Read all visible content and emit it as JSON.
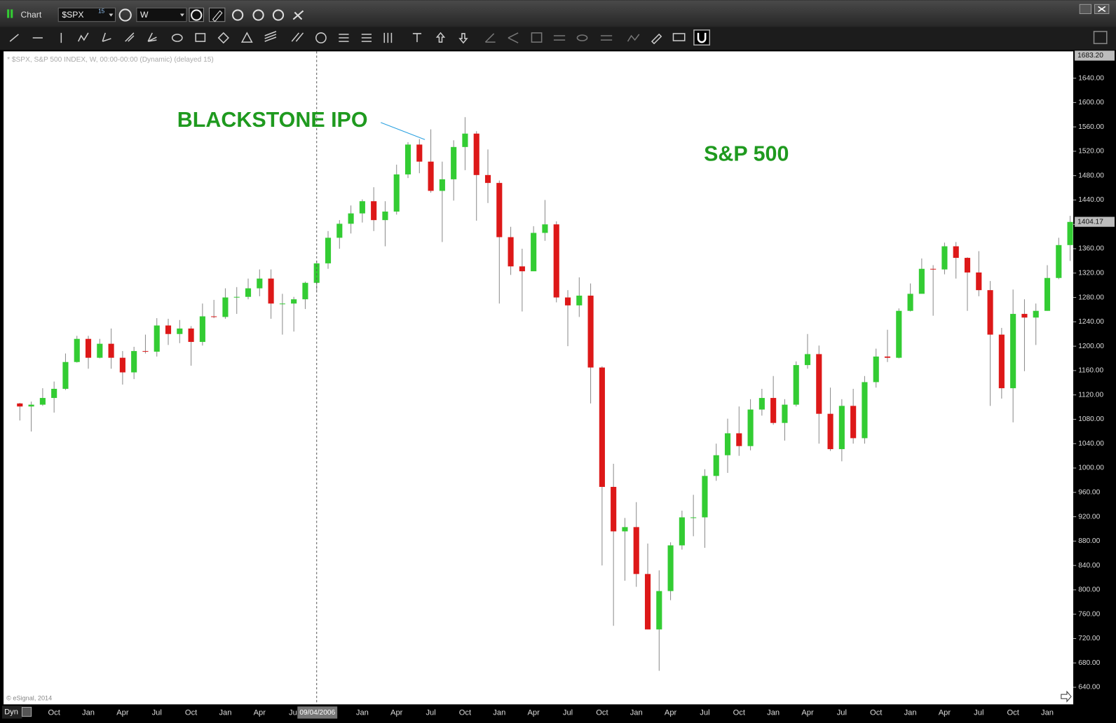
{
  "window": {
    "title": "Chart",
    "symbol": "$SPX",
    "symbol_badge": "15",
    "interval": "W",
    "mode": "Dyn"
  },
  "chart_data": {
    "type": "candlestick",
    "header": "* $SPX, S&P 500 INDEX, W, 00:00-00:00 (Dynamic) (delayed 15)",
    "copyright": "© eSignal, 2014",
    "cursor_label": "09/04/2006",
    "annotations": [
      {
        "text": "BLACKSTONE IPO",
        "color": "#1f9a1f"
      },
      {
        "text": "S&P 500",
        "color": "#1f9a1f"
      }
    ],
    "up_color": "#33cc33",
    "down_color": "#dd1818",
    "wick_color": "#8a8a8a",
    "categories": [
      null,
      null,
      null,
      "Oct",
      null,
      null,
      "Jan",
      null,
      null,
      "Apr",
      null,
      null,
      "Jul",
      null,
      null,
      "Oct",
      null,
      null,
      "Jan",
      null,
      null,
      "Apr",
      null,
      null,
      "Jul",
      null,
      null,
      null,
      null,
      null,
      "Jan",
      null,
      null,
      "Apr",
      null,
      null,
      "Jul",
      null,
      null,
      "Oct",
      null,
      null,
      "Jan",
      null,
      null,
      "Apr",
      null,
      null,
      "Jul",
      null,
      null,
      "Oct",
      null,
      null,
      "Jan",
      null,
      null,
      "Apr",
      null,
      null,
      "Jul",
      null,
      null,
      "Oct",
      null,
      null,
      "Jan",
      null,
      null,
      "Apr",
      null,
      null,
      "Jul",
      null,
      null,
      "Oct",
      null,
      null,
      "Jan",
      null,
      null,
      "Apr",
      null,
      null,
      "Jul",
      null,
      null,
      "Oct",
      null,
      null,
      "Jan",
      null,
      null
    ],
    "open": [
      1106,
      1101,
      1104,
      1115,
      1130,
      1174,
      1212,
      1181,
      1204,
      1181,
      1157,
      1192,
      1191,
      1234,
      1220,
      1229,
      1207,
      1249,
      1248,
      1280,
      1281,
      1295,
      1311,
      1270,
      1270,
      1277,
      1304,
      1336,
      1378,
      1401,
      1418,
      1438,
      1407,
      1421,
      1482,
      1531,
      1503,
      1455,
      1474,
      1527,
      1549,
      1481,
      1468,
      1379,
      1331,
      1323,
      1386,
      1400,
      1280,
      1267,
      1283,
      1165,
      969,
      896,
      903,
      826,
      735,
      798,
      873,
      919,
      919,
      987,
      1021,
      1057,
      1036,
      1096,
      1115,
      1074,
      1104,
      1169,
      1187,
      1089,
      1031,
      1102,
      1049,
      1141,
      1183,
      1181,
      1258,
      1286,
      1327,
      1326,
      1364,
      1345,
      1321,
      1292,
      1219,
      1131,
      1253,
      1247,
      1258,
      1312,
      1366
    ],
    "high": [
      1107,
      1109,
      1131,
      1142,
      1188,
      1217,
      1217,
      1212,
      1229,
      1192,
      1199,
      1219,
      1246,
      1245,
      1243,
      1233,
      1270,
      1276,
      1295,
      1297,
      1311,
      1326,
      1326,
      1286,
      1281,
      1306,
      1340,
      1389,
      1407,
      1431,
      1441,
      1461,
      1438,
      1498,
      1535,
      1540,
      1556,
      1503,
      1538,
      1576,
      1553,
      1523,
      1472,
      1396,
      1360,
      1397,
      1440,
      1405,
      1292,
      1313,
      1303,
      1167,
      1007,
      918,
      944,
      876,
      832,
      878,
      930,
      956,
      998,
      1040,
      1081,
      1101,
      1113,
      1130,
      1151,
      1113,
      1175,
      1220,
      1201,
      1132,
      1113,
      1130,
      1151,
      1196,
      1227,
      1262,
      1303,
      1344,
      1333,
      1370,
      1371,
      1346,
      1356,
      1307,
      1230,
      1293,
      1277,
      1270,
      1333,
      1378,
      1414
    ],
    "low": [
      1078,
      1060,
      1102,
      1091,
      1128,
      1173,
      1163,
      1180,
      1163,
      1137,
      1146,
      1188,
      1183,
      1202,
      1205,
      1168,
      1201,
      1246,
      1245,
      1253,
      1277,
      1282,
      1245,
      1219,
      1224,
      1261,
      1290,
      1327,
      1360,
      1385,
      1403,
      1389,
      1364,
      1416,
      1476,
      1484,
      1452,
      1371,
      1439,
      1489,
      1406,
      1435,
      1270,
      1317,
      1257,
      1324,
      1373,
      1272,
      1200,
      1248,
      1106,
      840,
      741,
      815,
      805,
      735,
      667,
      783,
      866,
      888,
      869,
      979,
      992,
      1020,
      1029,
      1086,
      1071,
      1045,
      1101,
      1163,
      1040,
      1028,
      1011,
      1040,
      1040,
      1132,
      1174,
      1180,
      1257,
      1295,
      1250,
      1318,
      1311,
      1258,
      1282,
      1102,
      1114,
      1075,
      1159,
      1202,
      1258,
      1310,
      1340
    ],
    "close": [
      1101,
      1104,
      1115,
      1130,
      1174,
      1212,
      1181,
      1204,
      1181,
      1157,
      1192,
      1191,
      1234,
      1220,
      1229,
      1207,
      1249,
      1248,
      1280,
      1281,
      1295,
      1311,
      1270,
      1270,
      1277,
      1304,
      1336,
      1378,
      1401,
      1418,
      1438,
      1407,
      1421,
      1482,
      1531,
      1503,
      1455,
      1474,
      1527,
      1549,
      1481,
      1468,
      1379,
      1331,
      1323,
      1386,
      1400,
      1280,
      1267,
      1283,
      1165,
      969,
      896,
      903,
      826,
      735,
      798,
      873,
      919,
      919,
      987,
      1021,
      1057,
      1036,
      1096,
      1115,
      1074,
      1104,
      1169,
      1187,
      1089,
      1031,
      1102,
      1049,
      1141,
      1183,
      1181,
      1258,
      1286,
      1327,
      1326,
      1364,
      1345,
      1321,
      1292,
      1219,
      1131,
      1253,
      1247,
      1258,
      1312,
      1366,
      1404
    ],
    "ylim": [
      612,
      1684
    ],
    "yticks": [
      {
        "value": 640,
        "label": "640.00"
      },
      {
        "value": 680,
        "label": "680.00"
      },
      {
        "value": 720,
        "label": "720.00"
      },
      {
        "value": 760,
        "label": "760.00"
      },
      {
        "value": 800,
        "label": "800.00"
      },
      {
        "value": 840,
        "label": "840.00"
      },
      {
        "value": 880,
        "label": "880.00"
      },
      {
        "value": 920,
        "label": "920.00"
      },
      {
        "value": 960,
        "label": "960.00"
      },
      {
        "value": 1000,
        "label": "1000.00"
      },
      {
        "value": 1040,
        "label": "1040.00"
      },
      {
        "value": 1080,
        "label": "1080.00"
      },
      {
        "value": 1120,
        "label": "1120.00"
      },
      {
        "value": 1160,
        "label": "1160.00"
      },
      {
        "value": 1200,
        "label": "1200.00"
      },
      {
        "value": 1240,
        "label": "1240.00"
      },
      {
        "value": 1280,
        "label": "1280.00"
      },
      {
        "value": 1320,
        "label": "1320.00"
      },
      {
        "value": 1360,
        "label": "1360.00"
      },
      {
        "value": 1400,
        "label": "1400.00"
      },
      {
        "value": 1440,
        "label": "1440.00"
      },
      {
        "value": 1480,
        "label": "1480.00"
      },
      {
        "value": 1520,
        "label": "1520.00"
      },
      {
        "value": 1560,
        "label": "1560.00"
      },
      {
        "value": 1600,
        "label": "1600.00"
      },
      {
        "value": 1640,
        "label": "1640.00"
      }
    ],
    "price_markers": [
      {
        "value": 1683.2,
        "label": "1683.20"
      },
      {
        "value": 1404.17,
        "label": "1404.17"
      }
    ]
  }
}
